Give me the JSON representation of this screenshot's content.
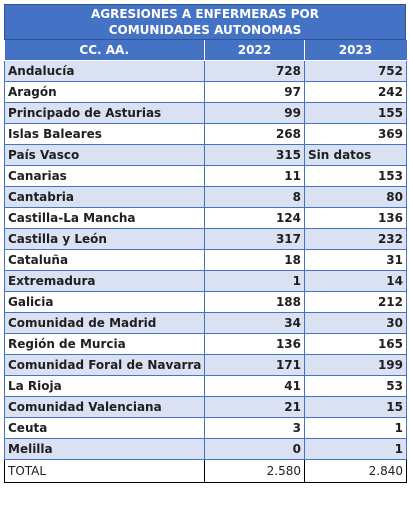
{
  "title": "AGRESIONES A ENFERMERAS POR COMUNIDADES AUTONOMAS",
  "headers": [
    "CC. AA.",
    "2022",
    "2023"
  ],
  "rows": [
    {
      "region": "Andalucía",
      "y2022": "728",
      "y2023": "752"
    },
    {
      "region": "Aragón",
      "y2022": "97",
      "y2023": "242"
    },
    {
      "region": "Principado de Asturias",
      "y2022": "99",
      "y2023": "155"
    },
    {
      "region": "Islas Baleares",
      "y2022": "268",
      "y2023": "369"
    },
    {
      "region": "País Vasco",
      "y2022": "315",
      "y2023": "Sin datos"
    },
    {
      "region": "Canarias",
      "y2022": "11",
      "y2023": "153"
    },
    {
      "region": "Cantabria",
      "y2022": "8",
      "y2023": "80"
    },
    {
      "region": "Castilla-La Mancha",
      "y2022": "124",
      "y2023": "136"
    },
    {
      "region": "Castilla y León",
      "y2022": "317",
      "y2023": "232"
    },
    {
      "region": "Cataluña",
      "y2022": "18",
      "y2023": "31"
    },
    {
      "region": "Extremadura",
      "y2022": "1",
      "y2023": "14"
    },
    {
      "region": "Galicia",
      "y2022": "188",
      "y2023": "212"
    },
    {
      "region": "Comunidad de Madrid",
      "y2022": "34",
      "y2023": "30"
    },
    {
      "region": "Región de Murcia",
      "y2022": "136",
      "y2023": "165"
    },
    {
      "region": "Comunidad Foral de Navarra",
      "y2022": "171",
      "y2023": "199"
    },
    {
      "region": "La Rioja",
      "y2022": "41",
      "y2023": "53"
    },
    {
      "region": "Comunidad Valenciana",
      "y2022": "21",
      "y2023": "15"
    },
    {
      "region": "Ceuta",
      "y2022": "3",
      "y2023": "1"
    },
    {
      "region": "Melilla",
      "y2022": "0",
      "y2023": "1"
    }
  ],
  "total": {
    "label": "TOTAL",
    "y2022": "2.580",
    "y2023": "2.840"
  },
  "colors": {
    "header": "#4472c4",
    "band": "#d9e1f2",
    "grid": "#4472c4"
  }
}
